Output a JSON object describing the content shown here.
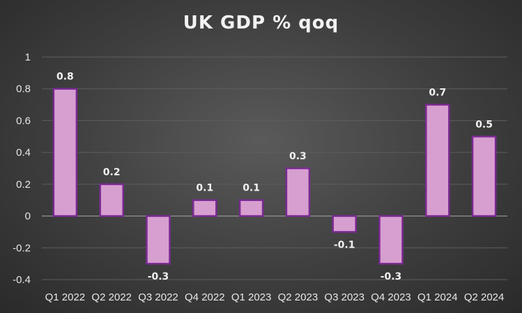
{
  "chart_data": {
    "type": "bar",
    "title": "UK GDP % qoq",
    "categories": [
      "Q1 2022",
      "Q2 2022",
      "Q3 2022",
      "Q4 2022",
      "Q1 2023",
      "Q2 2023",
      "Q3 2023",
      "Q4 2023",
      "Q1 2024",
      "Q2 2024"
    ],
    "values": [
      0.8,
      0.2,
      -0.3,
      0.1,
      0.1,
      0.3,
      -0.1,
      -0.3,
      0.7,
      0.5
    ],
    "data_labels": [
      "0.8",
      "0.2",
      "-0.3",
      "0.1",
      "0.1",
      "0.3",
      "-0.1",
      "-0.3",
      "0.7",
      "0.5"
    ],
    "y_ticks": [
      "1",
      "0.8",
      "0.6",
      "0.4",
      "0.2",
      "0",
      "-0.2",
      "-0.4"
    ],
    "y_tick_values": [
      1,
      0.8,
      0.6,
      0.4,
      0.2,
      0,
      -0.2,
      -0.4
    ],
    "ylim": [
      -0.4,
      1.0
    ],
    "xlabel": "",
    "ylabel": "",
    "grid": true,
    "legend": "none",
    "bar_fill": "#d79fcf",
    "bar_stroke": "#7a2a93",
    "grid_color": "#5e5e5e"
  }
}
